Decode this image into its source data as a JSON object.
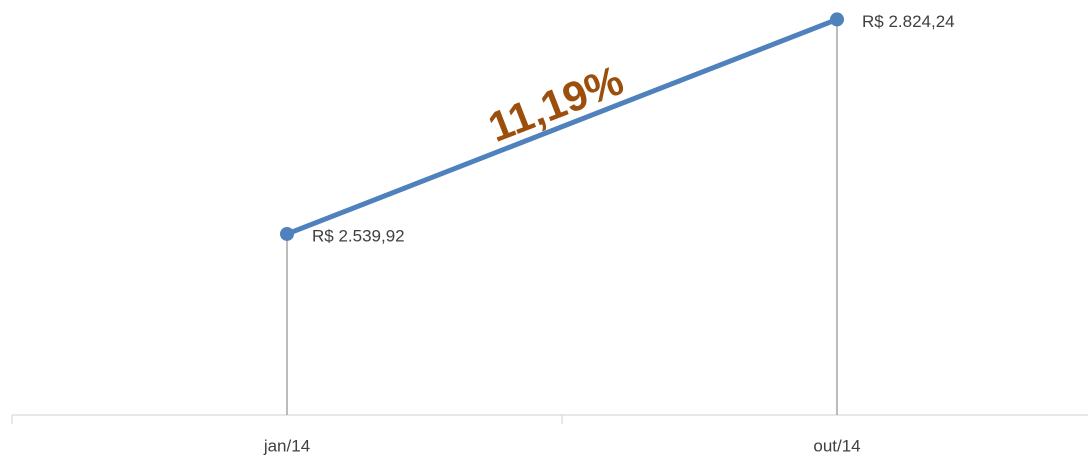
{
  "chart_data": {
    "type": "line",
    "categories": [
      "jan/14",
      "out/14"
    ],
    "series": [
      {
        "color": "#4f81bd",
        "values": [
          2539.92,
          2824.24
        ],
        "value_labels": [
          "R$ 2.539,92",
          "R$ 2.824,24"
        ]
      }
    ],
    "ylim": [
      2300,
      2850
    ],
    "drop_lines": true,
    "annotation": {
      "text": "11,19%",
      "color": "#9c4f0c"
    }
  }
}
